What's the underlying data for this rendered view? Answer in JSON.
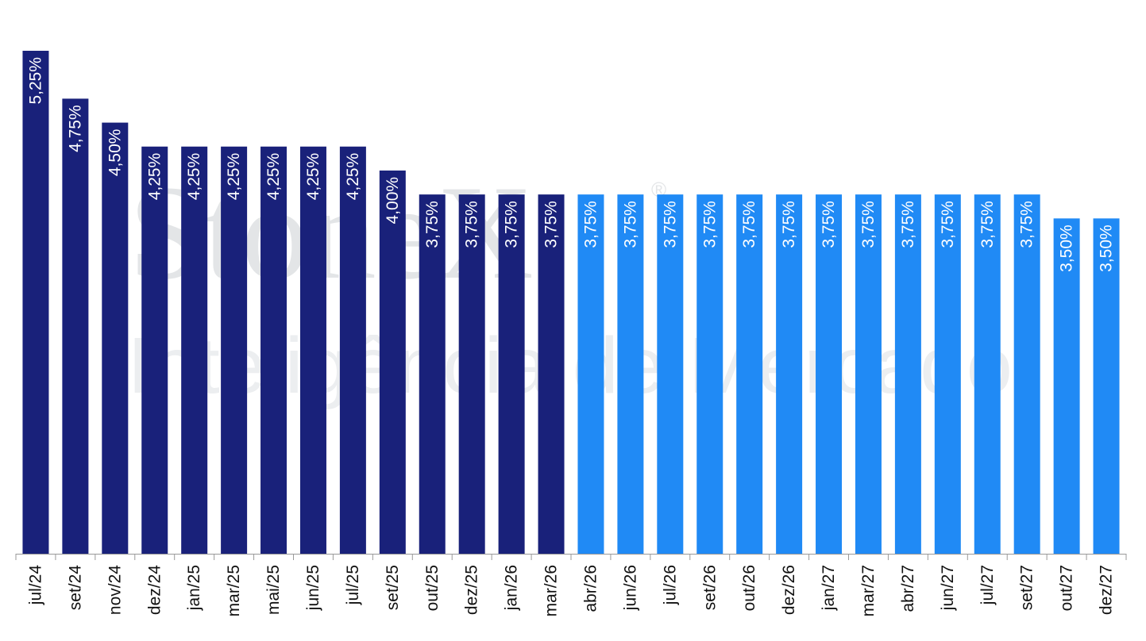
{
  "watermark": {
    "logo": "StoneX",
    "registered": "®",
    "tagline": "Inteligência de Mercado"
  },
  "colors": {
    "historical": "#19217a",
    "forecast": "#208af5",
    "axis": "#999999"
  },
  "chart_data": {
    "type": "bar",
    "title": "",
    "xlabel": "",
    "ylabel": "",
    "ylim": [
      0,
      5.25
    ],
    "grid": false,
    "legend": "none",
    "categories": [
      "jul/24",
      "set/24",
      "nov/24",
      "dez/24",
      "jan/25",
      "mar/25",
      "mai/25",
      "jun/25",
      "jul/25",
      "set/25",
      "out/25",
      "dez/25",
      "jan/26",
      "mar/26",
      "abr/26",
      "jun/26",
      "jul/26",
      "set/26",
      "out/26",
      "dez/26",
      "jan/27",
      "mar/27",
      "abr/27",
      "jun/27",
      "jul/27",
      "set/27",
      "out/27",
      "dez/27"
    ],
    "values": [
      5.25,
      4.75,
      4.5,
      4.25,
      4.25,
      4.25,
      4.25,
      4.25,
      4.25,
      4.0,
      3.75,
      3.75,
      3.75,
      3.75,
      3.75,
      3.75,
      3.75,
      3.75,
      3.75,
      3.75,
      3.75,
      3.75,
      3.75,
      3.75,
      3.75,
      3.75,
      3.5,
      3.5
    ],
    "labels": [
      "5,25%",
      "4,75%",
      "4,50%",
      "4,25%",
      "4,25%",
      "4,25%",
      "4,25%",
      "4,25%",
      "4,25%",
      "4,00%",
      "3,75%",
      "3,75%",
      "3,75%",
      "3,75%",
      "3,75%",
      "3,75%",
      "3,75%",
      "3,75%",
      "3,75%",
      "3,75%",
      "3,75%",
      "3,75%",
      "3,75%",
      "3,75%",
      "3,75%",
      "3,75%",
      "3,50%",
      "3,50%"
    ],
    "segment": [
      "historical",
      "historical",
      "historical",
      "historical",
      "historical",
      "historical",
      "historical",
      "historical",
      "historical",
      "historical",
      "historical",
      "historical",
      "historical",
      "historical",
      "forecast",
      "forecast",
      "forecast",
      "forecast",
      "forecast",
      "forecast",
      "forecast",
      "forecast",
      "forecast",
      "forecast",
      "forecast",
      "forecast",
      "forecast",
      "forecast"
    ]
  }
}
